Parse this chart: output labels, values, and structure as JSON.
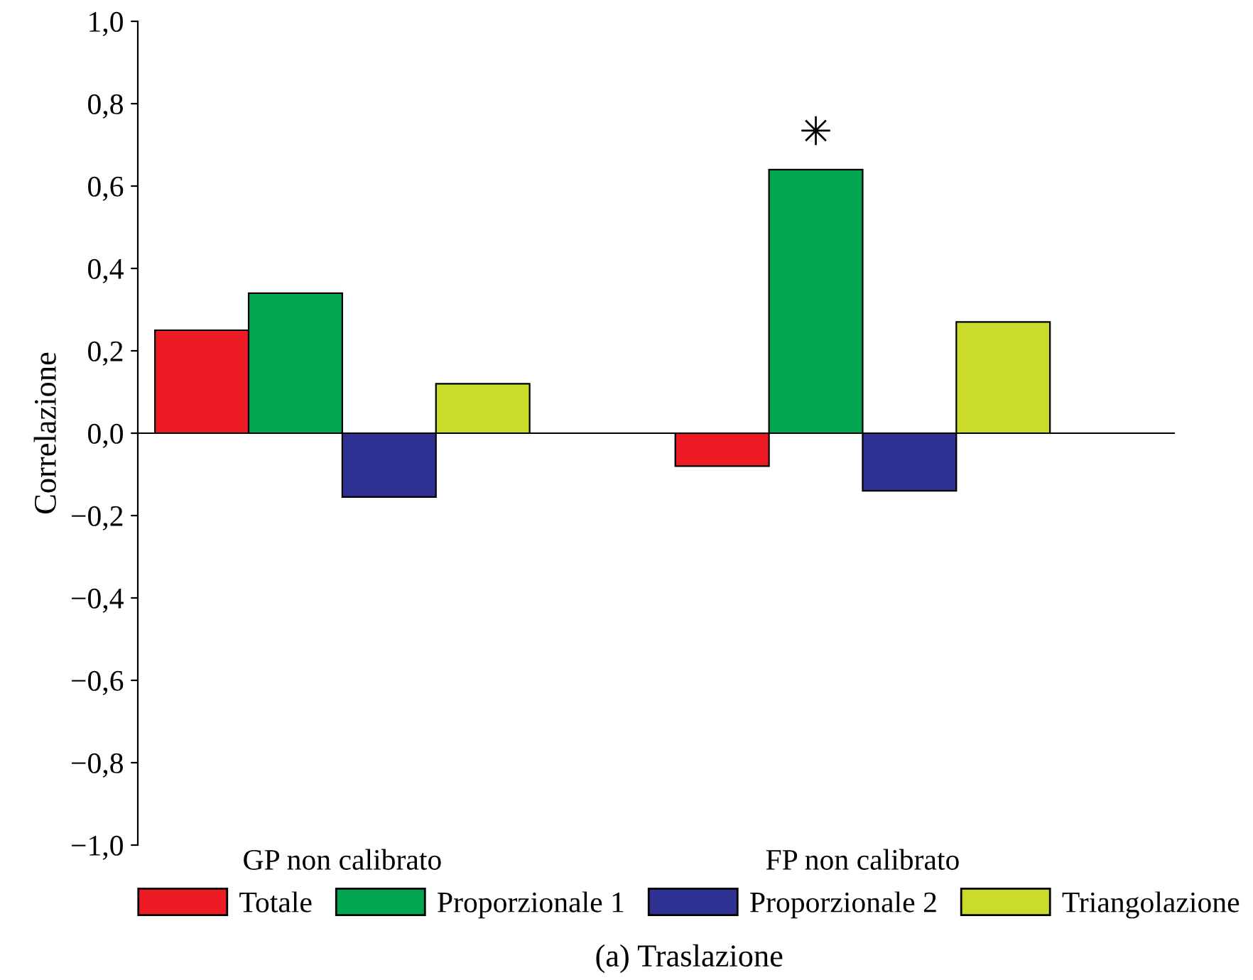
{
  "chart_data": {
    "type": "bar",
    "title": "(a) Traslazione",
    "ylabel": "Correlazione",
    "categories": [
      "GP non calibrato",
      "FP non calibrato"
    ],
    "series": [
      {
        "name": "Totale",
        "color": "#ed1c24",
        "values": [
          0.25,
          -0.08
        ]
      },
      {
        "name": "Proporzionale 1",
        "color": "#00a651",
        "values": [
          0.34,
          0.64
        ]
      },
      {
        "name": "Proporzionale 2",
        "color": "#2e3192",
        "values": [
          -0.155,
          -0.14
        ]
      },
      {
        "name": "Triangolazione",
        "color": "#cbdb2a",
        "values": [
          0.12,
          0.27
        ]
      }
    ],
    "ylim": [
      -1.0,
      1.0
    ],
    "yticks": [
      {
        "value": -1.0,
        "label": "−1,0"
      },
      {
        "value": -0.8,
        "label": "−0,8"
      },
      {
        "value": -0.6,
        "label": "−0,6"
      },
      {
        "value": -0.4,
        "label": "−0,4"
      },
      {
        "value": -0.2,
        "label": "−0,2"
      },
      {
        "value": 0.0,
        "label": "0,0"
      },
      {
        "value": 0.2,
        "label": "0,2"
      },
      {
        "value": 0.4,
        "label": "0,4"
      },
      {
        "value": 0.6,
        "label": "0,6"
      },
      {
        "value": 0.8,
        "label": "0,8"
      },
      {
        "value": 1.0,
        "label": "1,0"
      }
    ],
    "ref_lines": [
      {
        "axis": "y",
        "value": 0,
        "color": "#000000"
      }
    ],
    "annotations": [
      {
        "text": "✳",
        "x": "FP non calibrato",
        "y": 0.64
      }
    ],
    "legend": "bottom",
    "grid": false
  }
}
